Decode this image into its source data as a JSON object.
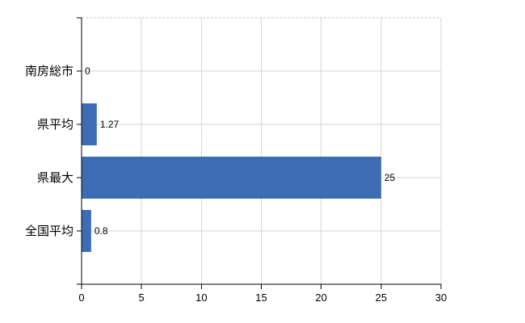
{
  "chart_data": {
    "type": "bar",
    "orientation": "horizontal",
    "title": "",
    "xlabel": "",
    "ylabel": "",
    "categories": [
      "南房総市",
      "県平均",
      "県最大",
      "全国平均"
    ],
    "values": [
      0,
      1.27,
      25,
      0.8
    ],
    "value_labels": [
      "0",
      "1.27",
      "25",
      "0.8"
    ],
    "xlim": [
      0,
      30
    ],
    "x_tick_values": [
      0,
      5,
      10,
      15,
      20,
      25,
      30
    ],
    "x_tick_labels": [
      "0",
      "5",
      "10",
      "15",
      "20",
      "25",
      "30"
    ],
    "grid": "on",
    "legend": "none",
    "colors": {
      "bar": "#3e6cb4",
      "grid": "#d6d6d6",
      "top_border": "#cccccc",
      "axis": "#000000",
      "text": "#000000",
      "background": "#ffffff"
    }
  }
}
